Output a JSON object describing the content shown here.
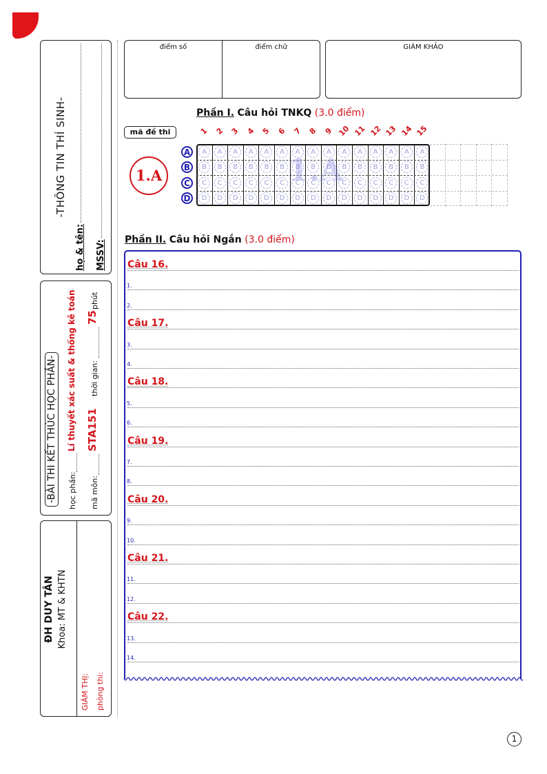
{
  "candidate_info": {
    "title": "-THÔNG TIN THÍ SINH-",
    "name_label": "họ & tên:",
    "id_label": "MSSV:"
  },
  "exam_info": {
    "title": "-BÀI THI KẾT THÚC HỌC PHẦN-",
    "course_label": "học phần:",
    "course_value": "Lí thuyết xác suất & thống kê toán",
    "code_label": "mã môn:",
    "code_value": "STA151",
    "time_label": "thời gian:",
    "time_value": "75",
    "time_unit": "phút"
  },
  "school": {
    "name": "ĐH DUY TÂN",
    "faculty": "Khoa: MT & KHTN",
    "proctor_label": "GIÁM THỊ:",
    "room_label": "phòng thi:"
  },
  "scores": {
    "score_number_label": "điểm số",
    "score_text_label": "điểm chữ",
    "examiner_label": "GIÁM KHẢO"
  },
  "part1": {
    "title_prefix": "Phần I.",
    "title": "Câu hỏi TNKQ",
    "points": "(3.0 điểm)",
    "exam_code_label": "mã đề thi",
    "exam_code": "1.A",
    "watermark": "1.A",
    "questions": [
      "1",
      "2",
      "3",
      "4",
      "5",
      "6",
      "7",
      "8",
      "9",
      "10",
      "11",
      "12",
      "13",
      "14",
      "15"
    ],
    "options": [
      "A",
      "B",
      "C",
      "D"
    ]
  },
  "part2": {
    "title_prefix": "Phần II.",
    "title": "Câu hỏi Ngắn",
    "points": "(3.0 điểm)",
    "questions": [
      {
        "label": "Câu 16.",
        "lines": [
          "1.",
          "2."
        ]
      },
      {
        "label": "Câu 17.",
        "lines": [
          "3.",
          "4."
        ]
      },
      {
        "label": "Câu 18.",
        "lines": [
          "5.",
          "6."
        ]
      },
      {
        "label": "Câu 19.",
        "lines": [
          "7.",
          "8."
        ]
      },
      {
        "label": "Câu 20.",
        "lines": [
          "9.",
          "10."
        ]
      },
      {
        "label": "Câu 21.",
        "lines": [
          "11.",
          "12."
        ]
      },
      {
        "label": "Câu 22.",
        "lines": [
          "13.",
          "14."
        ]
      }
    ]
  },
  "page_number": "1",
  "colors": {
    "accent_red": "#d4141b",
    "accent_blue": "#1f1fb0"
  }
}
